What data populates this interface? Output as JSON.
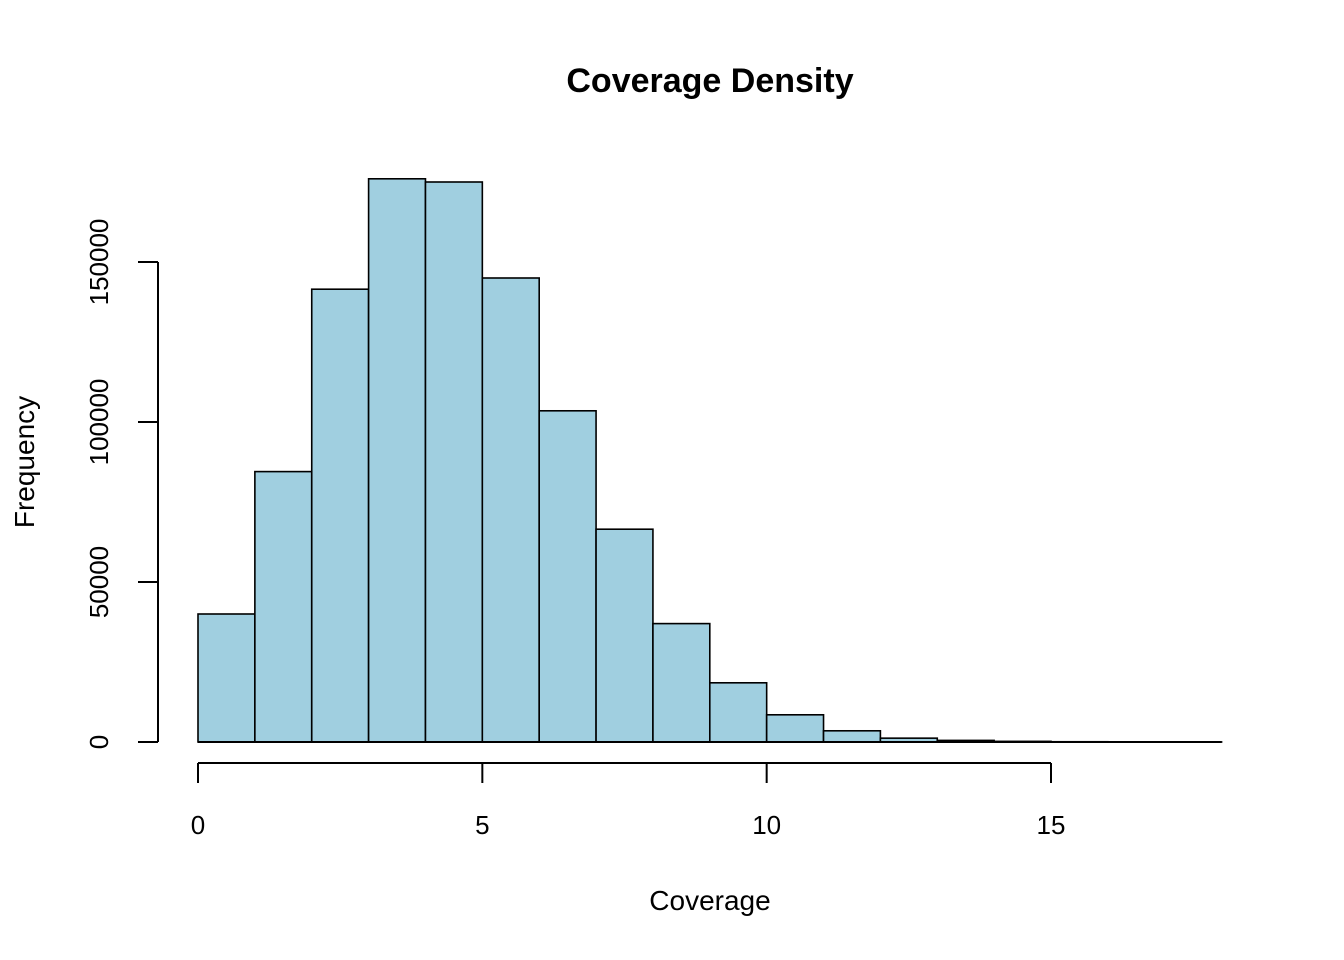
{
  "chart_data": {
    "type": "bar",
    "title": "Coverage Density",
    "xlabel": "Coverage",
    "ylabel": "Frequency",
    "bin_edges": [
      0,
      1,
      2,
      3,
      4,
      5,
      6,
      7,
      8,
      9,
      10,
      11,
      12,
      13,
      14,
      15,
      16,
      17,
      18
    ],
    "values": [
      40000,
      84500,
      141500,
      176000,
      175000,
      145000,
      103500,
      66500,
      37000,
      18500,
      8500,
      3500,
      1200,
      500,
      200,
      80,
      40,
      20
    ],
    "xlim": [
      0,
      18
    ],
    "ylim": [
      0,
      176000
    ],
    "xticks": [
      0,
      5,
      10,
      15
    ],
    "xtick_labels": [
      "0",
      "5",
      "10",
      "15"
    ],
    "yticks": [
      0,
      50000,
      100000,
      150000
    ],
    "ytick_labels": [
      "0",
      "50000",
      "100000",
      "150000"
    ],
    "grid": false,
    "bar_color": "#a0cfe0",
    "edge_color": "#000000"
  }
}
